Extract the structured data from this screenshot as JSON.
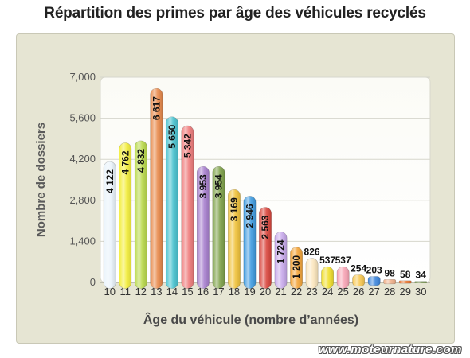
{
  "title": "Répartition des primes par âge des véhicules recyclés",
  "watermark": "www.moteurnature.com",
  "chart_data": {
    "type": "bar",
    "title": "Répartition des primes par âge des véhicules recyclés",
    "xlabel": "Âge du véhicule (nombre d’années)",
    "ylabel": "Nombre de dossiers",
    "ylim": [
      0,
      7000
    ],
    "yticks": [
      "0",
      "1,400",
      "2,800",
      "4,200",
      "5,600",
      "7,000"
    ],
    "ytick_values": [
      0,
      1400,
      2800,
      4200,
      5600,
      7000
    ],
    "grid": true,
    "categories": [
      "10",
      "11",
      "12",
      "13",
      "14",
      "15",
      "16",
      "17",
      "18",
      "19",
      "20",
      "21",
      "22",
      "23",
      "24",
      "25",
      "26",
      "27",
      "28",
      "29",
      "30"
    ],
    "values": [
      4122,
      4762,
      4832,
      6617,
      5650,
      5342,
      3953,
      3954,
      3169,
      2946,
      2563,
      1724,
      1200,
      826,
      537,
      537,
      254,
      203,
      98,
      58,
      34
    ],
    "value_labels": [
      "4 122",
      "4 762",
      "4 832",
      "6 617",
      "5 650",
      "5 342",
      "3 953",
      "3 954",
      "3 169",
      "2 946",
      "2 563",
      "1 724",
      "1 200",
      "826",
      "537",
      "537",
      "254",
      "203",
      "98",
      "58",
      "34"
    ],
    "colors": [
      "#e9f3fb",
      "#f3ee3a",
      "#b9d94a",
      "#e8894a",
      "#48c2cf",
      "#ef7c7c",
      "#a77fce",
      "#7fa24a",
      "#f0c23a",
      "#3f9be0",
      "#d9453c",
      "#c6a8ea",
      "#f3a438",
      "#fbe6bd",
      "#f0de2a",
      "#f7a3b4",
      "#f7c74f",
      "#3d86dc",
      "#f0b08a",
      "#f07a34",
      "#5e8d2b"
    ]
  }
}
